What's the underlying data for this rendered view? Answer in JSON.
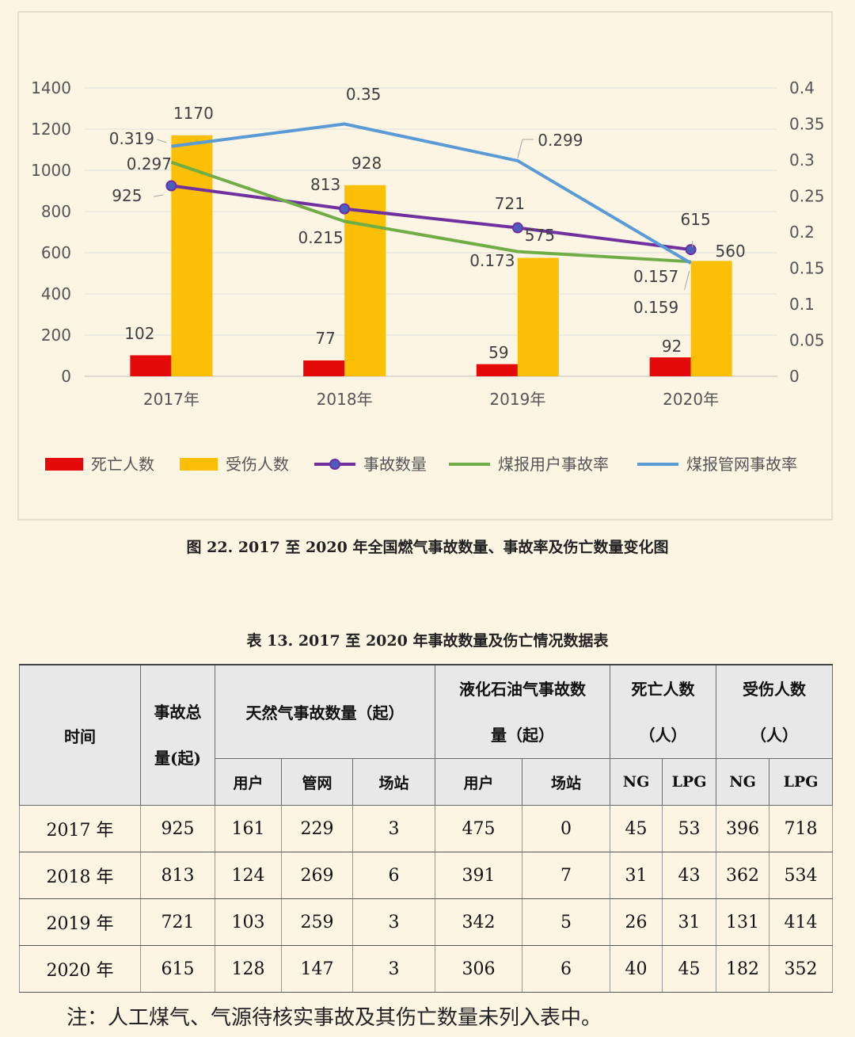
{
  "chart_data": {
    "type": "bar",
    "categories": [
      "2017年",
      "2018年",
      "2019年",
      "2020年"
    ],
    "y_left": {
      "ticks": [
        "0",
        "200",
        "400",
        "600",
        "800",
        "1000",
        "1200",
        "1400"
      ],
      "range": [
        0,
        1400
      ]
    },
    "y_right": {
      "ticks": [
        "0",
        "0.05",
        "0.1",
        "0.15",
        "0.2",
        "0.25",
        "0.3",
        "0.35",
        "0.4"
      ],
      "range": [
        0,
        0.4
      ]
    },
    "bar_series": [
      {
        "name": "死亡人数",
        "values": [
          102,
          77,
          59,
          92
        ],
        "labels": [
          "102",
          "77",
          "59",
          "92"
        ],
        "color": "#e50a0a"
      },
      {
        "name": "受伤人数",
        "values": [
          1170,
          928,
          575,
          560
        ],
        "labels": [
          "1170",
          "928",
          "575",
          "560"
        ],
        "color": "#fbbf05"
      }
    ],
    "line_series": [
      {
        "name": "事故数量",
        "axis": "left",
        "values": [
          925,
          813,
          721,
          615
        ],
        "labels": [
          "925",
          "813",
          "721",
          "615"
        ],
        "color": "#7030a0",
        "markers": true
      },
      {
        "name": "煤报用户事故率",
        "axis": "right",
        "values": [
          0.297,
          0.215,
          0.173,
          0.159
        ],
        "labels": [
          "0.297",
          "0.215",
          "0.173",
          "0.159"
        ],
        "color": "#70ad47",
        "markers": false
      },
      {
        "name": "煤报管网事故率",
        "axis": "right",
        "values": [
          0.319,
          0.35,
          0.299,
          0.157
        ],
        "labels": [
          "0.319",
          "0.35",
          "0.299",
          "0.157"
        ],
        "color": "#5b9bd5",
        "markers": false
      }
    ],
    "legend_position": "bottom",
    "grid": true
  },
  "figure_caption": "图 22. 2017 至 2020 年全国燃气事故数量、事故率及伤亡数量变化图",
  "table": {
    "caption": "表 13. 2017 至 2020 年事故数量及伤亡情况数据表",
    "headers": {
      "time": "时间",
      "total_line1": "事故总",
      "total_line2": "量(起)",
      "ng": "天然气事故数量（起）",
      "lpg_line1": "液化石油气事故数",
      "lpg_line2": "量（起）",
      "death_line1": "死亡人数",
      "death_line2": "（人）",
      "injury_line1": "受伤人数",
      "injury_line2": "（人）",
      "sub": [
        "用户",
        "管网",
        "场站",
        "用户",
        "场站",
        "NG",
        "LPG",
        "NG",
        "LPG"
      ]
    },
    "rows": [
      [
        "2017 年",
        "925",
        "161",
        "229",
        "3",
        "475",
        "0",
        "45",
        "53",
        "396",
        "718"
      ],
      [
        "2018 年",
        "813",
        "124",
        "269",
        "6",
        "391",
        "7",
        "31",
        "43",
        "362",
        "534"
      ],
      [
        "2019 年",
        "721",
        "103",
        "259",
        "3",
        "342",
        "5",
        "26",
        "31",
        "131",
        "414"
      ],
      [
        "2020 年",
        "615",
        "128",
        "147",
        "3",
        "306",
        "6",
        "40",
        "45",
        "182",
        "352"
      ]
    ]
  },
  "note": "注：人工煤气、气源待核实事故及其伤亡数量未列入表中。"
}
